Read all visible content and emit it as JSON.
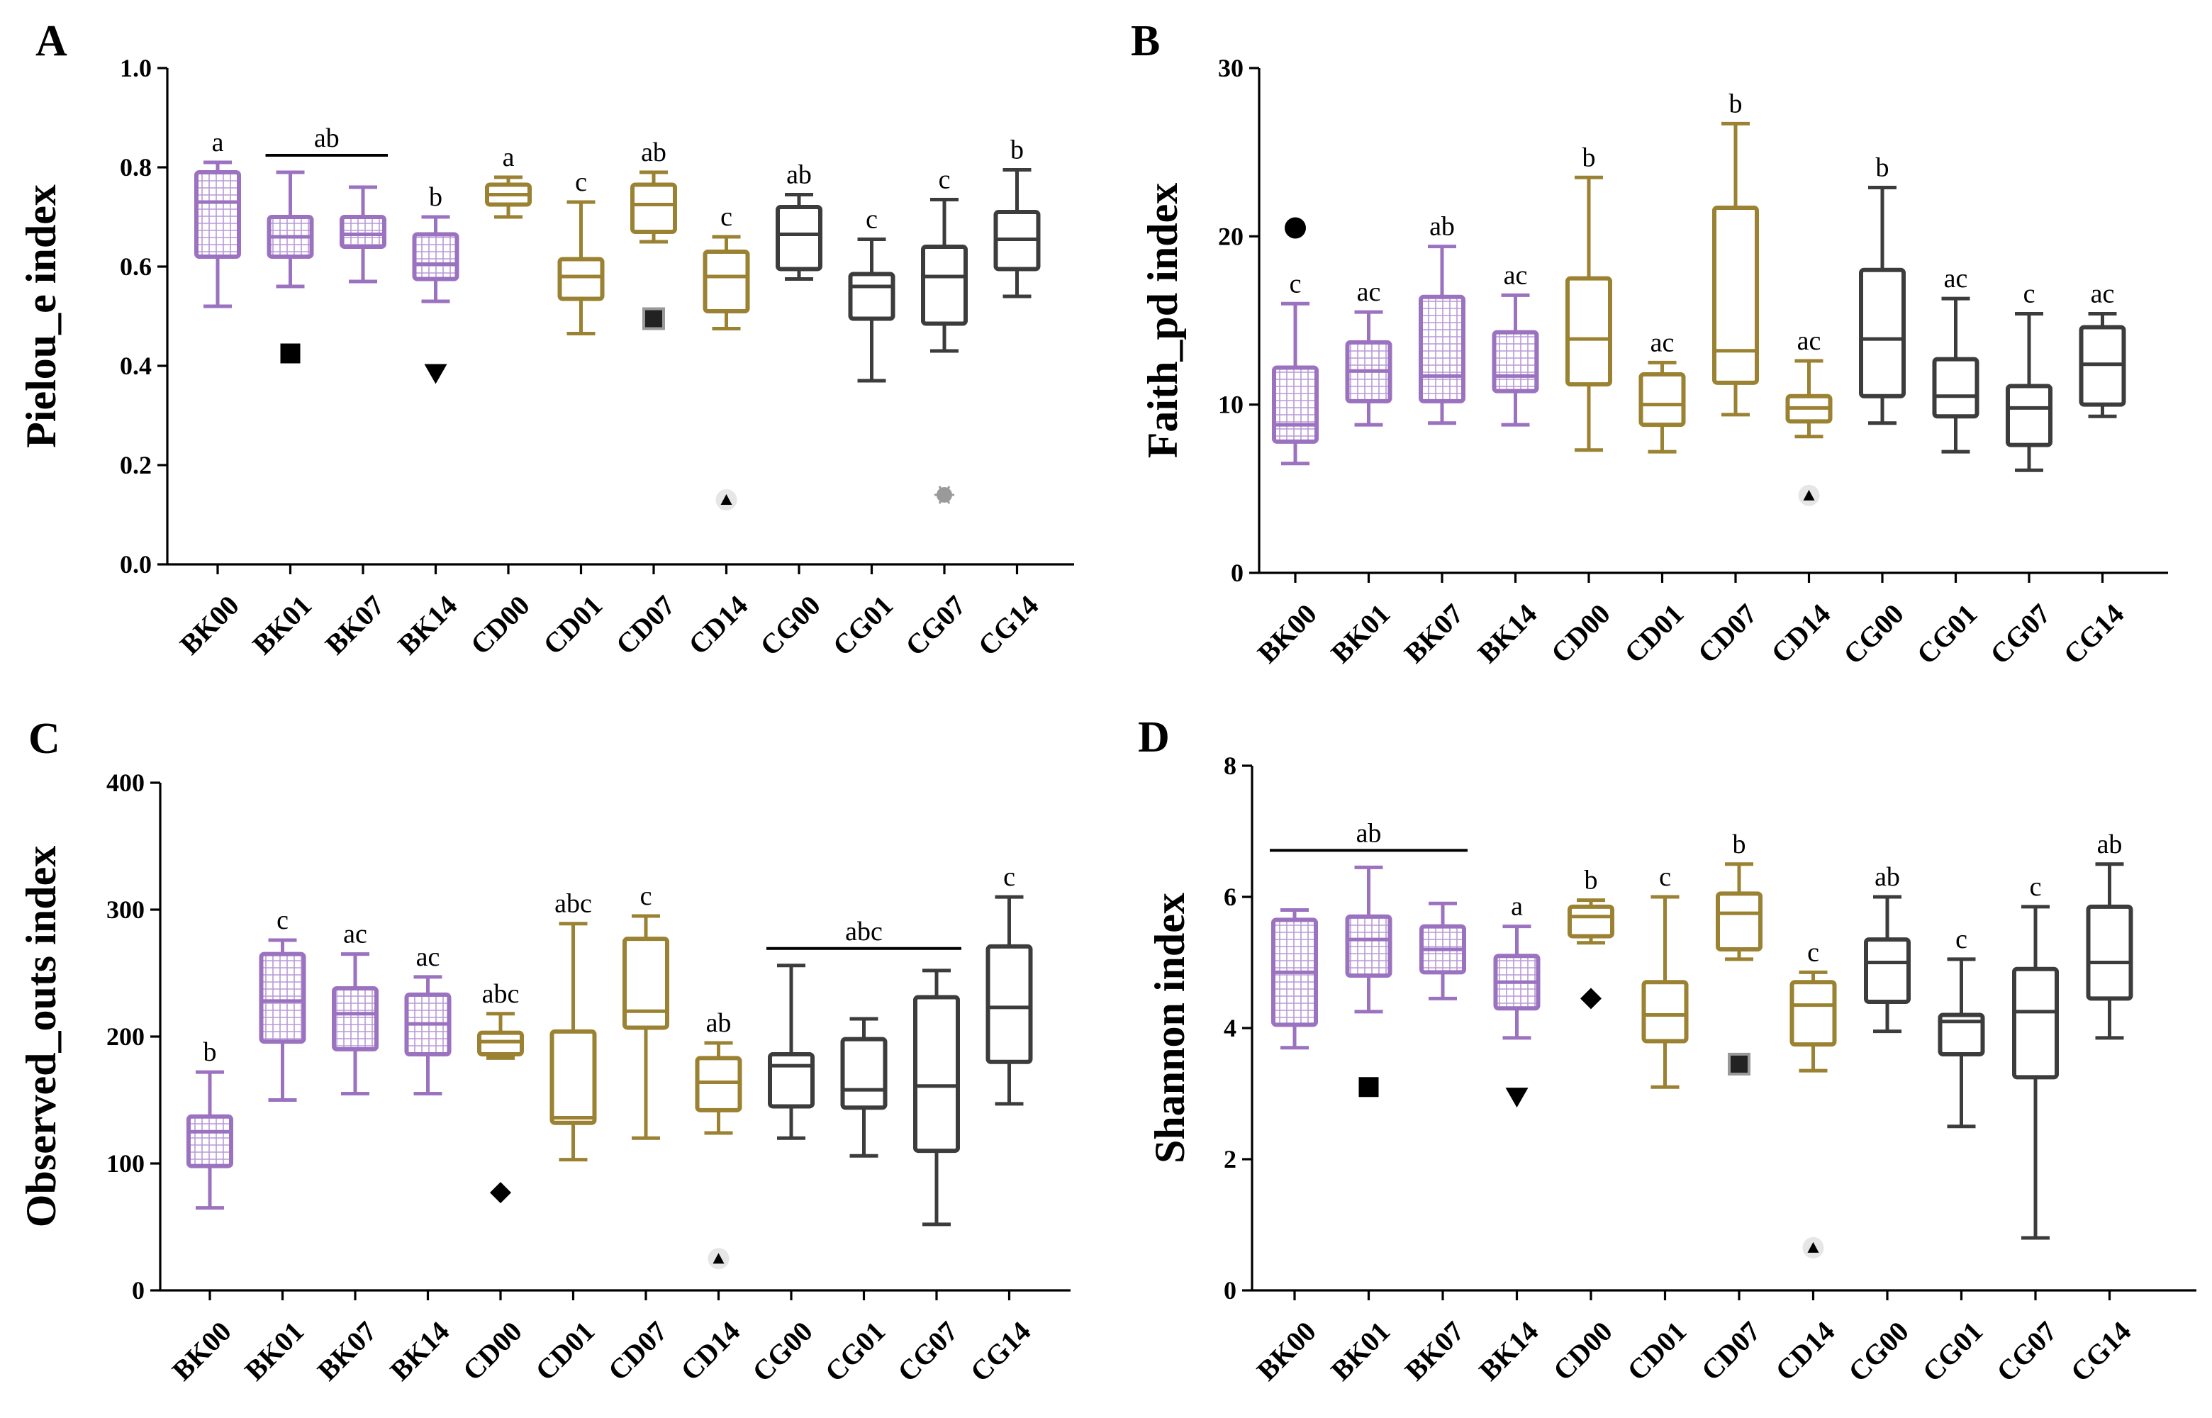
{
  "colors": {
    "purple": "#9b72bf",
    "gold": "#9a8232",
    "dark": "#3c3c3c",
    "black": "#000000",
    "gray": "#9a9a9a"
  },
  "chart_data": [
    {
      "type": "box",
      "panel": "A",
      "ylabel": "Pielou_e index",
      "ylim": [
        0,
        1.0
      ],
      "yticks": [
        "0.0",
        "0.2",
        "0.4",
        "0.6",
        "0.8",
        "1.0"
      ],
      "categories": [
        "BK00",
        "BK01",
        "BK07",
        "BK14",
        "CD00",
        "CD01",
        "CD07",
        "CD14",
        "CG00",
        "CG01",
        "CG07",
        "CG14"
      ],
      "boxes": [
        {
          "min": 0.52,
          "q1": 0.62,
          "median": 0.73,
          "q3": 0.79,
          "max": 0.81,
          "color": "purple",
          "hatch": true
        },
        {
          "min": 0.56,
          "q1": 0.62,
          "median": 0.66,
          "q3": 0.7,
          "max": 0.79,
          "color": "purple",
          "hatch": true
        },
        {
          "min": 0.57,
          "q1": 0.64,
          "median": 0.665,
          "q3": 0.7,
          "max": 0.76,
          "color": "purple",
          "hatch": true
        },
        {
          "min": 0.53,
          "q1": 0.575,
          "median": 0.605,
          "q3": 0.665,
          "max": 0.7,
          "color": "purple",
          "hatch": true
        },
        {
          "min": 0.7,
          "q1": 0.725,
          "median": 0.745,
          "q3": 0.765,
          "max": 0.78,
          "color": "gold",
          "hatch": false
        },
        {
          "min": 0.465,
          "q1": 0.535,
          "median": 0.58,
          "q3": 0.615,
          "max": 0.73,
          "color": "gold",
          "hatch": false
        },
        {
          "min": 0.65,
          "q1": 0.67,
          "median": 0.725,
          "q3": 0.765,
          "max": 0.79,
          "color": "gold",
          "hatch": false
        },
        {
          "min": 0.475,
          "q1": 0.51,
          "median": 0.58,
          "q3": 0.63,
          "max": 0.66,
          "color": "gold",
          "hatch": false
        },
        {
          "min": 0.575,
          "q1": 0.595,
          "median": 0.665,
          "q3": 0.72,
          "max": 0.745,
          "color": "dark",
          "hatch": false
        },
        {
          "min": 0.37,
          "q1": 0.495,
          "median": 0.56,
          "q3": 0.585,
          "max": 0.655,
          "color": "dark",
          "hatch": false
        },
        {
          "min": 0.43,
          "q1": 0.485,
          "median": 0.58,
          "q3": 0.64,
          "max": 0.735,
          "color": "dark",
          "hatch": false
        },
        {
          "min": 0.54,
          "q1": 0.595,
          "median": 0.655,
          "q3": 0.71,
          "max": 0.795,
          "color": "dark",
          "hatch": false
        }
      ],
      "labels": [
        "a",
        "",
        "",
        "b",
        "a",
        "c",
        "ab",
        "c",
        "ab",
        "c",
        "c",
        "b"
      ],
      "group_labels": [
        {
          "from": 1,
          "to": 2,
          "text": "ab"
        }
      ],
      "outliers": [
        {
          "cat": 1,
          "y": 0.425,
          "shape": "square",
          "color": "black"
        },
        {
          "cat": 3,
          "y": 0.385,
          "shape": "triangle-down",
          "color": "black"
        },
        {
          "cat": 6,
          "y": 0.495,
          "shape": "square-framed",
          "color": "black"
        },
        {
          "cat": 7,
          "y": 0.13,
          "shape": "triangle-up-halo",
          "color": "black"
        },
        {
          "cat": 10,
          "y": 0.14,
          "shape": "asterisk",
          "color": "gray"
        }
      ]
    },
    {
      "type": "box",
      "panel": "B",
      "ylabel": "Faith_pd index",
      "ylim": [
        0,
        30
      ],
      "yticks": [
        "0",
        "10",
        "20",
        "30"
      ],
      "categories": [
        "BK00",
        "BK01",
        "BK07",
        "BK14",
        "CD00",
        "CD01",
        "CD07",
        "CD14",
        "CG00",
        "CG01",
        "CG07",
        "CG14"
      ],
      "boxes": [
        {
          "min": 6.5,
          "q1": 7.8,
          "median": 8.8,
          "q3": 12.2,
          "max": 16.0,
          "color": "purple",
          "hatch": true
        },
        {
          "min": 8.8,
          "q1": 10.2,
          "median": 12.0,
          "q3": 13.7,
          "max": 15.5,
          "color": "purple",
          "hatch": true
        },
        {
          "min": 8.9,
          "q1": 10.2,
          "median": 11.7,
          "q3": 16.4,
          "max": 19.4,
          "color": "purple",
          "hatch": true
        },
        {
          "min": 8.8,
          "q1": 10.8,
          "median": 11.7,
          "q3": 14.3,
          "max": 16.5,
          "color": "purple",
          "hatch": true
        },
        {
          "min": 7.3,
          "q1": 11.2,
          "median": 13.9,
          "q3": 17.5,
          "max": 23.5,
          "color": "gold",
          "hatch": false
        },
        {
          "min": 7.2,
          "q1": 8.8,
          "median": 10.0,
          "q3": 11.8,
          "max": 12.5,
          "color": "gold",
          "hatch": false
        },
        {
          "min": 9.4,
          "q1": 11.3,
          "median": 13.2,
          "q3": 21.7,
          "max": 26.7,
          "color": "gold",
          "hatch": false
        },
        {
          "min": 8.1,
          "q1": 9.0,
          "median": 9.8,
          "q3": 10.5,
          "max": 12.6,
          "color": "gold",
          "hatch": false
        },
        {
          "min": 8.9,
          "q1": 10.5,
          "median": 13.9,
          "q3": 18.0,
          "max": 22.9,
          "color": "dark",
          "hatch": false
        },
        {
          "min": 7.2,
          "q1": 9.3,
          "median": 10.5,
          "q3": 12.7,
          "max": 16.3,
          "color": "dark",
          "hatch": false
        },
        {
          "min": 6.1,
          "q1": 7.6,
          "median": 9.8,
          "q3": 11.1,
          "max": 15.4,
          "color": "dark",
          "hatch": false
        },
        {
          "min": 9.3,
          "q1": 10.0,
          "median": 12.4,
          "q3": 14.6,
          "max": 15.4,
          "color": "dark",
          "hatch": false
        }
      ],
      "labels": [
        "c",
        "ac",
        "ab",
        "ac",
        "b",
        "ac",
        "b",
        "ac",
        "b",
        "ac",
        "c",
        "ac"
      ],
      "group_labels": [],
      "outliers": [
        {
          "cat": 0,
          "y": 20.5,
          "shape": "circle",
          "color": "black"
        },
        {
          "cat": 7,
          "y": 4.6,
          "shape": "triangle-up-halo",
          "color": "black"
        }
      ]
    },
    {
      "type": "box",
      "panel": "C",
      "ylabel": "Observed_outs index",
      "ylim": [
        0,
        400
      ],
      "yticks": [
        "0",
        "100",
        "200",
        "300",
        "400"
      ],
      "categories": [
        "BK00",
        "BK01",
        "BK07",
        "BK14",
        "CD00",
        "CD01",
        "CD07",
        "CD14",
        "CG00",
        "CG01",
        "CG07",
        "CG14"
      ],
      "boxes": [
        {
          "min": 65,
          "q1": 98,
          "median": 125,
          "q3": 137,
          "max": 172,
          "color": "purple",
          "hatch": true
        },
        {
          "min": 150,
          "q1": 196,
          "median": 228,
          "q3": 265,
          "max": 276,
          "color": "purple",
          "hatch": true
        },
        {
          "min": 155,
          "q1": 190,
          "median": 218,
          "q3": 238,
          "max": 265,
          "color": "purple",
          "hatch": true
        },
        {
          "min": 155,
          "q1": 186,
          "median": 210,
          "q3": 233,
          "max": 247,
          "color": "purple",
          "hatch": true
        },
        {
          "min": 183,
          "q1": 186,
          "median": 196,
          "q3": 203,
          "max": 218,
          "color": "gold",
          "hatch": false
        },
        {
          "min": 103,
          "q1": 132,
          "median": 136,
          "q3": 204,
          "max": 289,
          "color": "gold",
          "hatch": false
        },
        {
          "min": 120,
          "q1": 207,
          "median": 220,
          "q3": 277,
          "max": 295,
          "color": "gold",
          "hatch": false
        },
        {
          "min": 124,
          "q1": 142,
          "median": 164,
          "q3": 183,
          "max": 195,
          "color": "gold",
          "hatch": false
        },
        {
          "min": 120,
          "q1": 145,
          "median": 177,
          "q3": 186,
          "max": 256,
          "color": "dark",
          "hatch": false
        },
        {
          "min": 106,
          "q1": 144,
          "median": 158,
          "q3": 198,
          "max": 214,
          "color": "dark",
          "hatch": false
        },
        {
          "min": 52,
          "q1": 110,
          "median": 161,
          "q3": 231,
          "max": 252,
          "color": "dark",
          "hatch": false
        },
        {
          "min": 147,
          "q1": 180,
          "median": 223,
          "q3": 271,
          "max": 310,
          "color": "dark",
          "hatch": false
        }
      ],
      "labels": [
        "b",
        "c",
        "ac",
        "ac",
        "abc",
        "abc",
        "c",
        "ab",
        "",
        "",
        "",
        "c"
      ],
      "group_labels": [
        {
          "from": 8,
          "to": 10,
          "text": "abc"
        }
      ],
      "outliers": [
        {
          "cat": 4,
          "y": 77,
          "shape": "diamond",
          "color": "black"
        },
        {
          "cat": 7,
          "y": 25,
          "shape": "triangle-up-halo",
          "color": "black"
        }
      ]
    },
    {
      "type": "box",
      "panel": "D",
      "ylabel": "Shannon index",
      "ylim": [
        0,
        8
      ],
      "yticks": [
        "0",
        "2",
        "4",
        "6",
        "8"
      ],
      "categories": [
        "BK00",
        "BK01",
        "BK07",
        "BK14",
        "CD00",
        "CD01",
        "CD07",
        "CD14",
        "CG00",
        "CG01",
        "CG07",
        "CG14"
      ],
      "boxes": [
        {
          "min": 3.7,
          "q1": 4.05,
          "median": 4.85,
          "q3": 5.65,
          "max": 5.8,
          "color": "purple",
          "hatch": true
        },
        {
          "min": 4.25,
          "q1": 4.8,
          "median": 5.35,
          "q3": 5.7,
          "max": 6.45,
          "color": "purple",
          "hatch": true
        },
        {
          "min": 4.45,
          "q1": 4.85,
          "median": 5.2,
          "q3": 5.55,
          "max": 5.9,
          "color": "purple",
          "hatch": true
        },
        {
          "min": 3.85,
          "q1": 4.3,
          "median": 4.7,
          "q3": 5.1,
          "max": 5.55,
          "color": "purple",
          "hatch": true
        },
        {
          "min": 5.3,
          "q1": 5.4,
          "median": 5.7,
          "q3": 5.85,
          "max": 5.95,
          "color": "gold",
          "hatch": false
        },
        {
          "min": 3.1,
          "q1": 3.8,
          "median": 4.2,
          "q3": 4.7,
          "max": 6.0,
          "color": "gold",
          "hatch": false
        },
        {
          "min": 5.05,
          "q1": 5.2,
          "median": 5.75,
          "q3": 6.05,
          "max": 6.5,
          "color": "gold",
          "hatch": false
        },
        {
          "min": 3.35,
          "q1": 3.75,
          "median": 4.35,
          "q3": 4.7,
          "max": 4.85,
          "color": "gold",
          "hatch": false
        },
        {
          "min": 3.95,
          "q1": 4.4,
          "median": 5.0,
          "q3": 5.35,
          "max": 6.0,
          "color": "dark",
          "hatch": false
        },
        {
          "min": 2.5,
          "q1": 3.6,
          "median": 4.1,
          "q3": 4.2,
          "max": 5.05,
          "color": "dark",
          "hatch": false
        },
        {
          "min": 0.8,
          "q1": 3.25,
          "median": 4.25,
          "q3": 4.9,
          "max": 5.85,
          "color": "dark",
          "hatch": false
        },
        {
          "min": 3.85,
          "q1": 4.45,
          "median": 5.0,
          "q3": 5.85,
          "max": 6.5,
          "color": "dark",
          "hatch": false
        }
      ],
      "labels": [
        "",
        "",
        "",
        "a",
        "b",
        "c",
        "b",
        "c",
        "ab",
        "c",
        "c",
        "ab"
      ],
      "group_labels": [
        {
          "from": 0,
          "to": 2,
          "text": "ab"
        }
      ],
      "outliers": [
        {
          "cat": 1,
          "y": 3.1,
          "shape": "square",
          "color": "black"
        },
        {
          "cat": 3,
          "y": 2.95,
          "shape": "triangle-down",
          "color": "black"
        },
        {
          "cat": 4,
          "y": 4.45,
          "shape": "diamond",
          "color": "black"
        },
        {
          "cat": 6,
          "y": 3.45,
          "shape": "square-framed",
          "color": "black"
        },
        {
          "cat": 7,
          "y": 0.65,
          "shape": "triangle-up-halo",
          "color": "black"
        }
      ]
    }
  ]
}
